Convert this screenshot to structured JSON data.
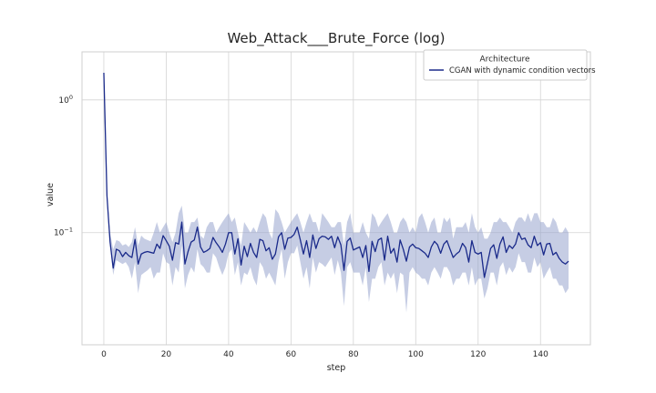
{
  "chart_data": {
    "type": "line",
    "title": "Web_Attack___Brute_Force (log)",
    "xlabel": "step",
    "ylabel": "value",
    "yscale": "log",
    "xlim": [
      -7,
      156
    ],
    "ylim": [
      0.0143,
      2.3
    ],
    "x_ticks": [
      0,
      20,
      40,
      60,
      80,
      100,
      120,
      140
    ],
    "y_ticks": [
      {
        "value": 1,
        "label": "10^0"
      },
      {
        "value": 0.1,
        "label": "10^-1"
      }
    ],
    "grid": true,
    "legend": {
      "title": "Architecture",
      "placement": "top-right",
      "entries": [
        "CGAN with dynamic condition vectors"
      ]
    },
    "colors": {
      "line": "#1a2a8a",
      "band": "#8d9bc9",
      "grid": "#d4d4d4",
      "frame": "#cfcfcf"
    },
    "series": [
      {
        "name": "CGAN with dynamic condition vectors",
        "x": [
          0,
          1,
          2,
          3,
          4,
          5,
          6,
          7,
          8,
          9,
          10,
          11,
          12,
          13,
          14,
          15,
          16,
          17,
          18,
          19,
          20,
          21,
          22,
          23,
          24,
          25,
          26,
          27,
          28,
          29,
          30,
          31,
          32,
          33,
          34,
          35,
          36,
          37,
          38,
          39,
          40,
          41,
          42,
          43,
          44,
          45,
          46,
          47,
          48,
          49,
          50,
          51,
          52,
          53,
          54,
          55,
          56,
          57,
          58,
          59,
          60,
          61,
          62,
          63,
          64,
          65,
          66,
          67,
          68,
          69,
          70,
          71,
          72,
          73,
          74,
          75,
          76,
          77,
          78,
          79,
          80,
          81,
          82,
          83,
          84,
          85,
          86,
          87,
          88,
          89,
          90,
          91,
          92,
          93,
          94,
          95,
          96,
          97,
          98,
          99,
          100,
          101,
          102,
          103,
          104,
          105,
          106,
          107,
          108,
          109,
          110,
          111,
          112,
          113,
          114,
          115,
          116,
          117,
          118,
          119,
          120,
          121,
          122,
          123,
          124,
          125,
          126,
          127,
          128,
          129,
          130,
          131,
          132,
          133,
          134,
          135,
          136,
          137,
          138,
          139,
          140,
          141,
          142,
          143,
          144,
          145,
          146,
          147,
          148,
          149
        ],
        "values": [
          1.6,
          0.19,
          0.085,
          0.054,
          0.075,
          0.073,
          0.066,
          0.071,
          0.067,
          0.065,
          0.089,
          0.058,
          0.069,
          0.071,
          0.072,
          0.071,
          0.07,
          0.082,
          0.076,
          0.095,
          0.087,
          0.079,
          0.062,
          0.084,
          0.082,
          0.12,
          0.058,
          0.072,
          0.085,
          0.088,
          0.11,
          0.078,
          0.071,
          0.073,
          0.076,
          0.092,
          0.084,
          0.078,
          0.071,
          0.082,
          0.1,
          0.1,
          0.069,
          0.09,
          0.057,
          0.079,
          0.066,
          0.083,
          0.071,
          0.065,
          0.089,
          0.087,
          0.073,
          0.077,
          0.063,
          0.069,
          0.093,
          0.1,
          0.075,
          0.091,
          0.092,
          0.097,
          0.11,
          0.088,
          0.069,
          0.087,
          0.065,
          0.096,
          0.076,
          0.09,
          0.094,
          0.093,
          0.089,
          0.094,
          0.077,
          0.093,
          0.081,
          0.052,
          0.086,
          0.091,
          0.074,
          0.076,
          0.078,
          0.065,
          0.08,
          0.051,
          0.086,
          0.072,
          0.088,
          0.091,
          0.062,
          0.094,
          0.07,
          0.076,
          0.06,
          0.088,
          0.075,
          0.061,
          0.078,
          0.082,
          0.077,
          0.076,
          0.073,
          0.07,
          0.065,
          0.078,
          0.086,
          0.081,
          0.07,
          0.082,
          0.087,
          0.075,
          0.065,
          0.069,
          0.072,
          0.083,
          0.077,
          0.06,
          0.087,
          0.071,
          0.069,
          0.071,
          0.046,
          0.059,
          0.076,
          0.081,
          0.064,
          0.082,
          0.093,
          0.071,
          0.08,
          0.076,
          0.082,
          0.1,
          0.089,
          0.091,
          0.081,
          0.077,
          0.094,
          0.08,
          0.084,
          0.068,
          0.082,
          0.083,
          0.068,
          0.071,
          0.064,
          0.06,
          0.058,
          0.061
        ],
        "band_upper": [
          1.6,
          0.2,
          0.1,
          0.075,
          0.088,
          0.086,
          0.08,
          0.082,
          0.078,
          0.085,
          0.11,
          0.08,
          0.095,
          0.09,
          0.088,
          0.086,
          0.1,
          0.12,
          0.1,
          0.11,
          0.12,
          0.1,
          0.085,
          0.1,
          0.14,
          0.16,
          0.1,
          0.1,
          0.12,
          0.12,
          0.13,
          0.095,
          0.09,
          0.11,
          0.12,
          0.12,
          0.1,
          0.11,
          0.12,
          0.13,
          0.14,
          0.12,
          0.13,
          0.1,
          0.08,
          0.12,
          0.11,
          0.1,
          0.11,
          0.1,
          0.12,
          0.14,
          0.13,
          0.1,
          0.09,
          0.15,
          0.14,
          0.12,
          0.1,
          0.11,
          0.12,
          0.13,
          0.14,
          0.12,
          0.1,
          0.12,
          0.14,
          0.12,
          0.12,
          0.1,
          0.14,
          0.13,
          0.12,
          0.11,
          0.11,
          0.12,
          0.12,
          0.08,
          0.12,
          0.14,
          0.1,
          0.1,
          0.1,
          0.12,
          0.1,
          0.09,
          0.14,
          0.13,
          0.11,
          0.12,
          0.13,
          0.14,
          0.12,
          0.1,
          0.1,
          0.12,
          0.13,
          0.12,
          0.1,
          0.11,
          0.1,
          0.13,
          0.14,
          0.12,
          0.1,
          0.12,
          0.13,
          0.1,
          0.1,
          0.13,
          0.12,
          0.13,
          0.09,
          0.11,
          0.11,
          0.11,
          0.12,
          0.1,
          0.14,
          0.11,
          0.1,
          0.11,
          0.09,
          0.09,
          0.1,
          0.12,
          0.12,
          0.13,
          0.12,
          0.12,
          0.11,
          0.1,
          0.12,
          0.13,
          0.13,
          0.12,
          0.14,
          0.12,
          0.14,
          0.14,
          0.12,
          0.12,
          0.11,
          0.11,
          0.13,
          0.12,
          0.1,
          0.1,
          0.11,
          0.1
        ],
        "band_lower": [
          1.6,
          0.19,
          0.08,
          0.048,
          0.062,
          0.06,
          0.058,
          0.06,
          0.055,
          0.045,
          0.06,
          0.035,
          0.048,
          0.05,
          0.052,
          0.055,
          0.045,
          0.05,
          0.05,
          0.07,
          0.06,
          0.058,
          0.04,
          0.055,
          0.05,
          0.08,
          0.038,
          0.048,
          0.055,
          0.05,
          0.075,
          0.058,
          0.055,
          0.05,
          0.05,
          0.07,
          0.065,
          0.055,
          0.048,
          0.055,
          0.07,
          0.075,
          0.048,
          0.06,
          0.04,
          0.05,
          0.048,
          0.055,
          0.045,
          0.04,
          0.06,
          0.055,
          0.045,
          0.05,
          0.045,
          0.04,
          0.06,
          0.075,
          0.045,
          0.06,
          0.07,
          0.07,
          0.08,
          0.06,
          0.045,
          0.055,
          0.038,
          0.065,
          0.05,
          0.06,
          0.058,
          0.055,
          0.06,
          0.065,
          0.048,
          0.062,
          0.05,
          0.028,
          0.055,
          0.06,
          0.05,
          0.05,
          0.05,
          0.04,
          0.055,
          0.03,
          0.045,
          0.045,
          0.055,
          0.06,
          0.04,
          0.05,
          0.045,
          0.05,
          0.035,
          0.05,
          0.048,
          0.025,
          0.05,
          0.055,
          0.05,
          0.048,
          0.045,
          0.045,
          0.04,
          0.05,
          0.055,
          0.05,
          0.045,
          0.055,
          0.055,
          0.05,
          0.04,
          0.045,
          0.045,
          0.05,
          0.05,
          0.04,
          0.055,
          0.04,
          0.045,
          0.045,
          0.032,
          0.038,
          0.05,
          0.05,
          0.04,
          0.055,
          0.06,
          0.048,
          0.055,
          0.05,
          0.055,
          0.07,
          0.06,
          0.06,
          0.05,
          0.05,
          0.065,
          0.055,
          0.06,
          0.045,
          0.05,
          0.055,
          0.045,
          0.045,
          0.04,
          0.04,
          0.035,
          0.038
        ]
      }
    ]
  }
}
